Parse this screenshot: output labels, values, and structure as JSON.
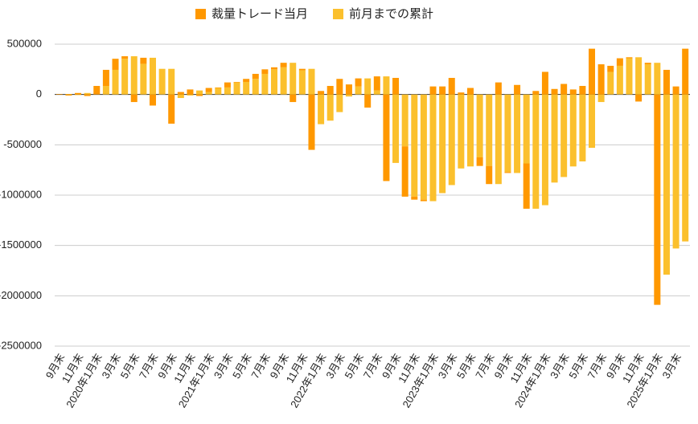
{
  "chart_data": {
    "type": "bar",
    "stacked": true,
    "categories": [
      "9月末",
      null,
      "11月末",
      null,
      "2020年1月末",
      null,
      "3月末",
      null,
      "5月末",
      null,
      "7月末",
      null,
      "9月末",
      null,
      "11月末",
      null,
      "2021年1月末",
      null,
      "3月末",
      null,
      "5月末",
      null,
      "7月末",
      null,
      "9月末",
      null,
      "11月末",
      null,
      "2022年1月末",
      null,
      "3月末",
      null,
      "5月末",
      null,
      "7月末",
      null,
      "9月末",
      null,
      "11月末",
      null,
      "2023年1月末",
      null,
      "3月末",
      null,
      "5月末",
      null,
      "7月末",
      null,
      "9月末",
      null,
      "11月末",
      null,
      "2024年1月末",
      null,
      "3月末",
      null,
      "5月末",
      null,
      "7月末",
      null,
      "9月末",
      null,
      "11月末",
      null,
      "2025年1月末",
      null,
      "3月末",
      null
    ],
    "series": [
      {
        "name": "前月までの累計",
        "color": "#fbc02d",
        "values": [
          0,
          5000,
          -5000,
          15000,
          0,
          85000,
          245000,
          355000,
          380000,
          305000,
          365000,
          255000,
          255000,
          -35000,
          -10000,
          40000,
          25000,
          65000,
          70000,
          120000,
          125000,
          155000,
          205000,
          250000,
          270000,
          315000,
          240000,
          255000,
          -295000,
          -260000,
          -175000,
          -20000,
          80000,
          160000,
          40000,
          180000,
          -680000,
          -515000,
          -1015000,
          -1045000,
          -1060000,
          -980000,
          -900000,
          -735000,
          -715000,
          -625000,
          -710000,
          -890000,
          -770000,
          -780000,
          -685000,
          -1135000,
          -1100000,
          -875000,
          -820000,
          -715000,
          -665000,
          -530000,
          -75000,
          225000,
          285000,
          360000,
          370000,
          300000,
          315000,
          -1790000,
          -1530000,
          -1460000
        ]
      },
      {
        "name": "裁量トレード当月",
        "color": "#ff9800",
        "values": [
          5000,
          -10000,
          15000,
          -15000,
          85000,
          160000,
          110000,
          25000,
          -75000,
          60000,
          -110000,
          0,
          -290000,
          25000,
          50000,
          -15000,
          40000,
          5000,
          50000,
          5000,
          30000,
          50000,
          45000,
          20000,
          45000,
          -75000,
          15000,
          -550000,
          35000,
          85000,
          155000,
          100000,
          80000,
          -130000,
          140000,
          -860000,
          165000,
          -500000,
          -30000,
          -15000,
          80000,
          80000,
          165000,
          20000,
          65000,
          -85000,
          -180000,
          120000,
          -10000,
          95000,
          -450000,
          35000,
          225000,
          55000,
          105000,
          50000,
          85000,
          455000,
          300000,
          60000,
          75000,
          10000,
          -70000,
          15000,
          -2090000,
          245000,
          80000,
          455000
        ]
      }
    ],
    "legend_order": [
      1,
      0
    ],
    "ylim": [
      -2500000,
      500000
    ],
    "yticks": [
      500000,
      0,
      -500000,
      -1000000,
      -1500000,
      -2000000,
      -2500000
    ],
    "grid": true,
    "legend": "top"
  }
}
